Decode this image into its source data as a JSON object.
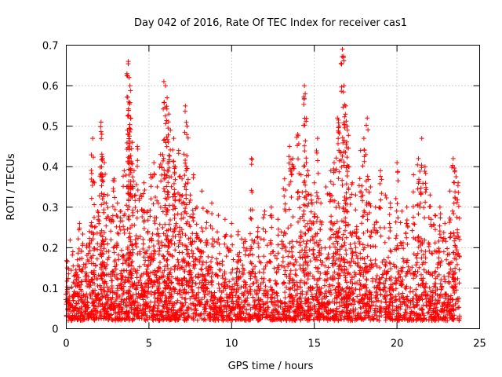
{
  "chart_data": {
    "type": "scatter",
    "title": "Day 042 of 2016, Rate Of TEC Index for receiver cas1",
    "xlabel": "GPS time / hours",
    "ylabel": "ROTI / TECUs",
    "xlim": [
      0,
      25
    ],
    "ylim": [
      0,
      0.7
    ],
    "xticks": [
      0,
      5,
      10,
      15,
      20,
      25
    ],
    "yticks": [
      0,
      0.1,
      0.2,
      0.3,
      0.4,
      0.5,
      0.6,
      0.7
    ],
    "xtick_labels": [
      "0",
      "5",
      "10",
      "15",
      "20",
      "25"
    ],
    "ytick_labels": [
      "0",
      "0.1",
      "0.2",
      "0.3",
      "0.4",
      "0.5",
      "0.6",
      "0.7"
    ],
    "grid": true,
    "marker": "+",
    "color": "#ff0000",
    "series": [
      {
        "name": "ROTI",
        "points": [
          [
            0.05,
            0.15
          ],
          [
            0.2,
            0.08
          ],
          [
            0.4,
            0.19
          ],
          [
            0.6,
            0.12
          ],
          [
            0.8,
            0.26
          ],
          [
            1.0,
            0.21
          ],
          [
            1.2,
            0.16
          ],
          [
            1.4,
            0.24
          ],
          [
            1.6,
            0.47
          ],
          [
            1.7,
            0.36
          ],
          [
            1.9,
            0.29
          ],
          [
            2.1,
            0.51
          ],
          [
            2.15,
            0.48
          ],
          [
            2.2,
            0.42
          ],
          [
            2.3,
            0.41
          ],
          [
            2.5,
            0.33
          ],
          [
            2.7,
            0.27
          ],
          [
            2.9,
            0.37
          ],
          [
            3.1,
            0.31
          ],
          [
            3.3,
            0.29
          ],
          [
            3.5,
            0.39
          ],
          [
            3.7,
            0.49
          ],
          [
            3.75,
            0.66
          ],
          [
            3.8,
            0.62
          ],
          [
            3.85,
            0.6
          ],
          [
            3.9,
            0.52
          ],
          [
            4.0,
            0.46
          ],
          [
            4.1,
            0.39
          ],
          [
            4.3,
            0.45
          ],
          [
            4.5,
            0.33
          ],
          [
            4.7,
            0.36
          ],
          [
            4.9,
            0.29
          ],
          [
            5.1,
            0.38
          ],
          [
            5.3,
            0.41
          ],
          [
            5.5,
            0.35
          ],
          [
            5.7,
            0.43
          ],
          [
            5.9,
            0.61
          ],
          [
            6.0,
            0.6
          ],
          [
            6.1,
            0.57
          ],
          [
            6.2,
            0.53
          ],
          [
            6.3,
            0.49
          ],
          [
            6.5,
            0.47
          ],
          [
            6.6,
            0.4
          ],
          [
            6.8,
            0.44
          ],
          [
            7.0,
            0.37
          ],
          [
            7.2,
            0.55
          ],
          [
            7.3,
            0.5
          ],
          [
            7.5,
            0.33
          ],
          [
            7.7,
            0.38
          ],
          [
            7.9,
            0.3
          ],
          [
            8.2,
            0.34
          ],
          [
            8.5,
            0.29
          ],
          [
            8.8,
            0.31
          ],
          [
            9.2,
            0.28
          ],
          [
            9.6,
            0.27
          ],
          [
            10.0,
            0.26
          ],
          [
            10.4,
            0.24
          ],
          [
            10.8,
            0.22
          ],
          [
            11.2,
            0.42
          ],
          [
            11.6,
            0.25
          ],
          [
            12.0,
            0.29
          ],
          [
            12.4,
            0.3
          ],
          [
            12.8,
            0.27
          ],
          [
            13.2,
            0.37
          ],
          [
            13.5,
            0.45
          ],
          [
            13.7,
            0.42
          ],
          [
            14.0,
            0.48
          ],
          [
            14.2,
            0.38
          ],
          [
            14.4,
            0.6
          ],
          [
            14.45,
            0.58
          ],
          [
            14.6,
            0.39
          ],
          [
            14.8,
            0.33
          ],
          [
            15.0,
            0.36
          ],
          [
            15.2,
            0.47
          ],
          [
            15.4,
            0.31
          ],
          [
            15.7,
            0.35
          ],
          [
            16.0,
            0.39
          ],
          [
            16.2,
            0.41
          ],
          [
            16.4,
            0.52
          ],
          [
            16.5,
            0.5
          ],
          [
            16.7,
            0.69
          ],
          [
            16.8,
            0.6
          ],
          [
            16.9,
            0.55
          ],
          [
            17.0,
            0.49
          ],
          [
            17.1,
            0.4
          ],
          [
            17.3,
            0.36
          ],
          [
            17.5,
            0.33
          ],
          [
            17.8,
            0.44
          ],
          [
            18.0,
            0.47
          ],
          [
            18.2,
            0.52
          ],
          [
            18.4,
            0.35
          ],
          [
            18.7,
            0.3
          ],
          [
            19.0,
            0.39
          ],
          [
            19.3,
            0.33
          ],
          [
            19.6,
            0.31
          ],
          [
            20.0,
            0.41
          ],
          [
            20.3,
            0.29
          ],
          [
            20.6,
            0.3
          ],
          [
            21.0,
            0.38
          ],
          [
            21.3,
            0.42
          ],
          [
            21.5,
            0.47
          ],
          [
            21.7,
            0.4
          ],
          [
            22.0,
            0.33
          ],
          [
            22.3,
            0.28
          ],
          [
            22.6,
            0.3
          ],
          [
            22.9,
            0.26
          ],
          [
            23.2,
            0.34
          ],
          [
            23.4,
            0.42
          ],
          [
            23.5,
            0.39
          ],
          [
            23.7,
            0.36
          ]
        ],
        "baseline_band": {
          "x_range": [
            0,
            23.8
          ],
          "y_range": [
            0.02,
            0.26
          ]
        }
      }
    ]
  }
}
